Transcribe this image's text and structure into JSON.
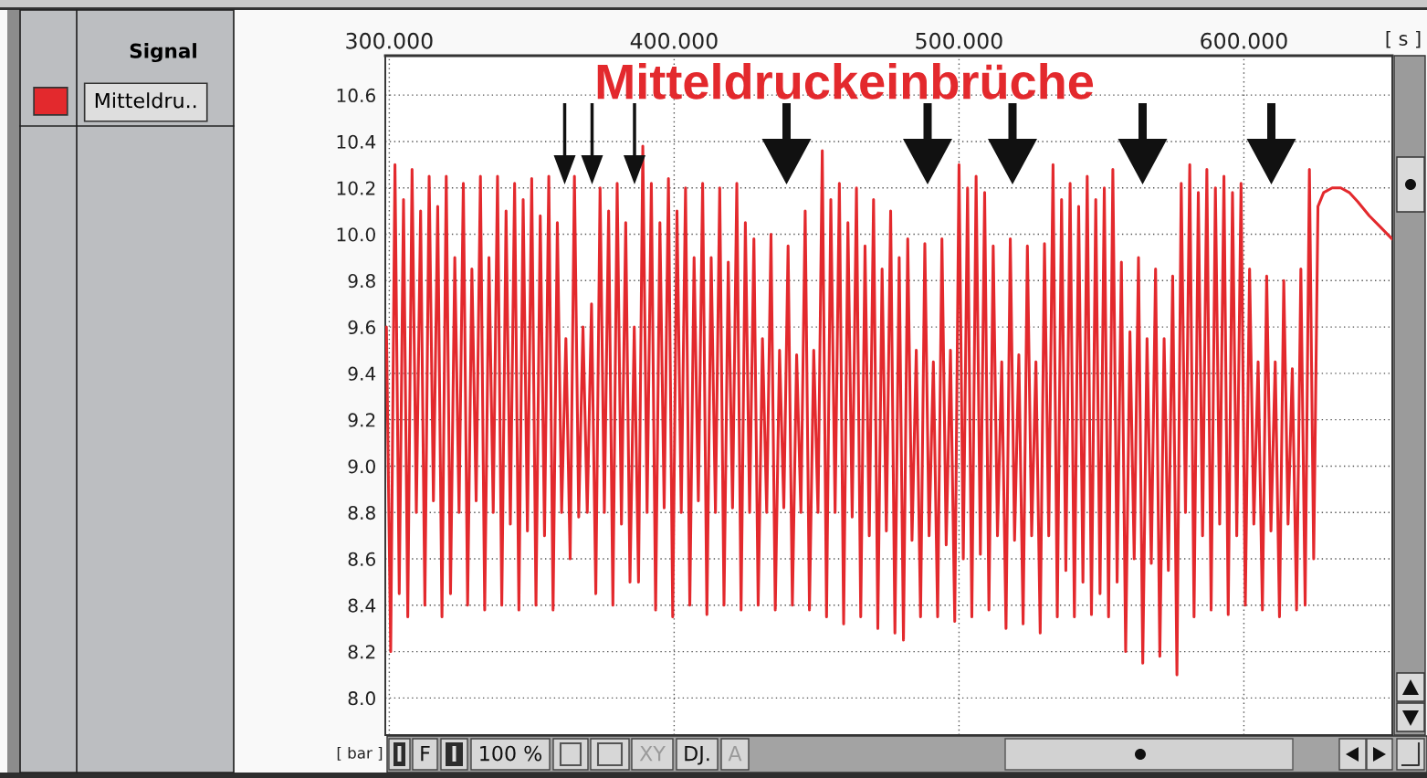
{
  "chart_data": {
    "type": "line",
    "title": "Mitteldruckeinbrüche",
    "xlabel": "[ s ]",
    "ylabel": "[ bar ]",
    "legend_title": "Signal",
    "xlim": [
      298.6,
      652.1
    ],
    "ylim": [
      7.84,
      10.77
    ],
    "xticks": [
      {
        "value": 300,
        "label": "300.000"
      },
      {
        "value": 400,
        "label": "400.000"
      },
      {
        "value": 500,
        "label": "500.000"
      },
      {
        "value": 600,
        "label": "600.000"
      }
    ],
    "yticks": [
      {
        "value": 8.0,
        "label": "8.0"
      },
      8.2,
      8.4,
      8.6,
      8.8,
      {
        "value": 9.0,
        "label": "9.0"
      },
      9.2,
      9.4,
      9.6,
      9.8,
      {
        "value": 10.0,
        "label": "10.0"
      },
      10.2,
      10.4,
      10.6
    ],
    "grid": true,
    "legend": "top left",
    "x": [
      299,
      300.5,
      302,
      303.5,
      305,
      306.5,
      308,
      309.5,
      311,
      312.5,
      314,
      315.5,
      317,
      318.5,
      320,
      321.5,
      323,
      324.5,
      326,
      327.5,
      329,
      330.5,
      332,
      333.5,
      335,
      336.5,
      338,
      339.5,
      341,
      342.5,
      344,
      345.5,
      347,
      348.5,
      350,
      351.5,
      353,
      354.5,
      356,
      357.5,
      359,
      360.5,
      362,
      363.5,
      365,
      366.5,
      368,
      369.5,
      371,
      372.5,
      374,
      375.5,
      377,
      378.5,
      380,
      381.5,
      383,
      384.5,
      386,
      387.5,
      389,
      390.5,
      392,
      393.5,
      395,
      396.5,
      398,
      399.5,
      401,
      402.5,
      404,
      405.5,
      407,
      408.5,
      410,
      411.5,
      413,
      414.5,
      416,
      417.5,
      419,
      420.5,
      422,
      423.5,
      425,
      426.5,
      428,
      429.5,
      431,
      432.5,
      434,
      435.5,
      437,
      438.5,
      440,
      441.5,
      443,
      444.5,
      446,
      447.5,
      449,
      450.5,
      452,
      453.5,
      455,
      456.5,
      458,
      459.5,
      461,
      462.5,
      464,
      465.5,
      467,
      468.5,
      470,
      471.5,
      473,
      474.5,
      476,
      477.5,
      479,
      480.5,
      482,
      483.5,
      485,
      486.5,
      488,
      489.5,
      491,
      492.5,
      494,
      495.5,
      497,
      498.5,
      500,
      501.5,
      503,
      504.5,
      506,
      507.5,
      509,
      510.5,
      512,
      513.5,
      515,
      516.5,
      518,
      519.5,
      521,
      522.5,
      524,
      525.5,
      527,
      528.5,
      530,
      531.5,
      533,
      534.5,
      536,
      537.5,
      539,
      540.5,
      542,
      543.5,
      545,
      546.5,
      548,
      549.5,
      551,
      552.5,
      554,
      555.5,
      557,
      558.5,
      560,
      561.5,
      563,
      564.5,
      566,
      567.5,
      569,
      570.5,
      572,
      573.5,
      575,
      576.5,
      578,
      579.5,
      581,
      582.5,
      584,
      585.5,
      587,
      588.5,
      590,
      591.5,
      593,
      594.5,
      596,
      597.5,
      599,
      600.5,
      602,
      603.5,
      605,
      606.5,
      608,
      609.5,
      611,
      612.5,
      614,
      615.5,
      617,
      618.5,
      620,
      621.5,
      623,
      624.5,
      626,
      628,
      631,
      634,
      637,
      640,
      644,
      648,
      652
    ],
    "series": [
      {
        "name": "Mitteldru..",
        "color": "#e3292d",
        "values": [
          9.6,
          8.2,
          10.3,
          8.45,
          10.15,
          8.35,
          10.28,
          8.8,
          10.1,
          8.4,
          10.25,
          8.85,
          10.12,
          8.35,
          10.25,
          8.45,
          9.9,
          8.8,
          10.22,
          8.4,
          9.85,
          8.85,
          10.25,
          8.38,
          9.9,
          8.8,
          10.25,
          8.4,
          10.1,
          8.75,
          10.22,
          8.38,
          10.15,
          8.72,
          10.24,
          8.4,
          10.08,
          8.7,
          10.25,
          8.38,
          10.05,
          8.8,
          9.55,
          8.6,
          10.25,
          8.78,
          9.6,
          8.8,
          9.7,
          8.45,
          10.2,
          8.8,
          10.1,
          8.4,
          10.22,
          8.75,
          10.05,
          8.5,
          9.6,
          8.5,
          10.38,
          8.8,
          10.22,
          8.38,
          10.05,
          8.82,
          10.24,
          8.35,
          10.1,
          8.8,
          10.2,
          8.4,
          9.9,
          8.85,
          10.22,
          8.36,
          9.9,
          8.8,
          10.2,
          8.4,
          9.88,
          8.82,
          10.22,
          8.38,
          10.05,
          8.8,
          9.98,
          8.4,
          9.55,
          8.8,
          10.0,
          8.38,
          9.5,
          8.82,
          9.95,
          8.4,
          9.48,
          8.8,
          10.1,
          8.38,
          9.5,
          8.8,
          10.36,
          8.35,
          10.15,
          8.8,
          10.22,
          8.32,
          10.05,
          8.78,
          10.2,
          8.35,
          9.95,
          8.7,
          10.15,
          8.3,
          9.85,
          8.72,
          10.1,
          8.28,
          9.9,
          8.25,
          9.98,
          8.68,
          9.5,
          8.35,
          9.96,
          8.7,
          9.45,
          8.35,
          9.98,
          8.66,
          9.5,
          8.33,
          10.3,
          8.6,
          10.2,
          8.35,
          10.25,
          8.62,
          10.18,
          8.38,
          9.95,
          8.7,
          9.45,
          8.3,
          9.98,
          8.68,
          9.48,
          8.32,
          9.95,
          8.7,
          9.45,
          8.28,
          9.96,
          8.7,
          10.3,
          8.35,
          10.15,
          8.55,
          10.22,
          8.35,
          10.12,
          8.5,
          10.25,
          8.36,
          10.15,
          8.45,
          10.2,
          8.35,
          10.28,
          8.5,
          9.88,
          8.2,
          9.58,
          8.6,
          9.9,
          8.15,
          9.55,
          8.58,
          9.85,
          8.18,
          9.55,
          8.55,
          9.82,
          8.1,
          10.22,
          8.8,
          10.3,
          8.35,
          10.18,
          8.7,
          10.28,
          8.38,
          10.2,
          8.75,
          10.25,
          8.36,
          10.18,
          8.7,
          10.22,
          8.4,
          9.85,
          8.75,
          9.45,
          8.38,
          9.82,
          8.72,
          9.45,
          8.35,
          9.8,
          8.75,
          9.42,
          8.38,
          9.85,
          8.4,
          10.28,
          8.6,
          10.12,
          10.18,
          10.2,
          10.2,
          10.18,
          10.14,
          10.08,
          10.03,
          9.98
        ]
      }
    ],
    "annotations": [
      "F",
      "100 %",
      "XY",
      "DJ.",
      "A"
    ]
  }
}
